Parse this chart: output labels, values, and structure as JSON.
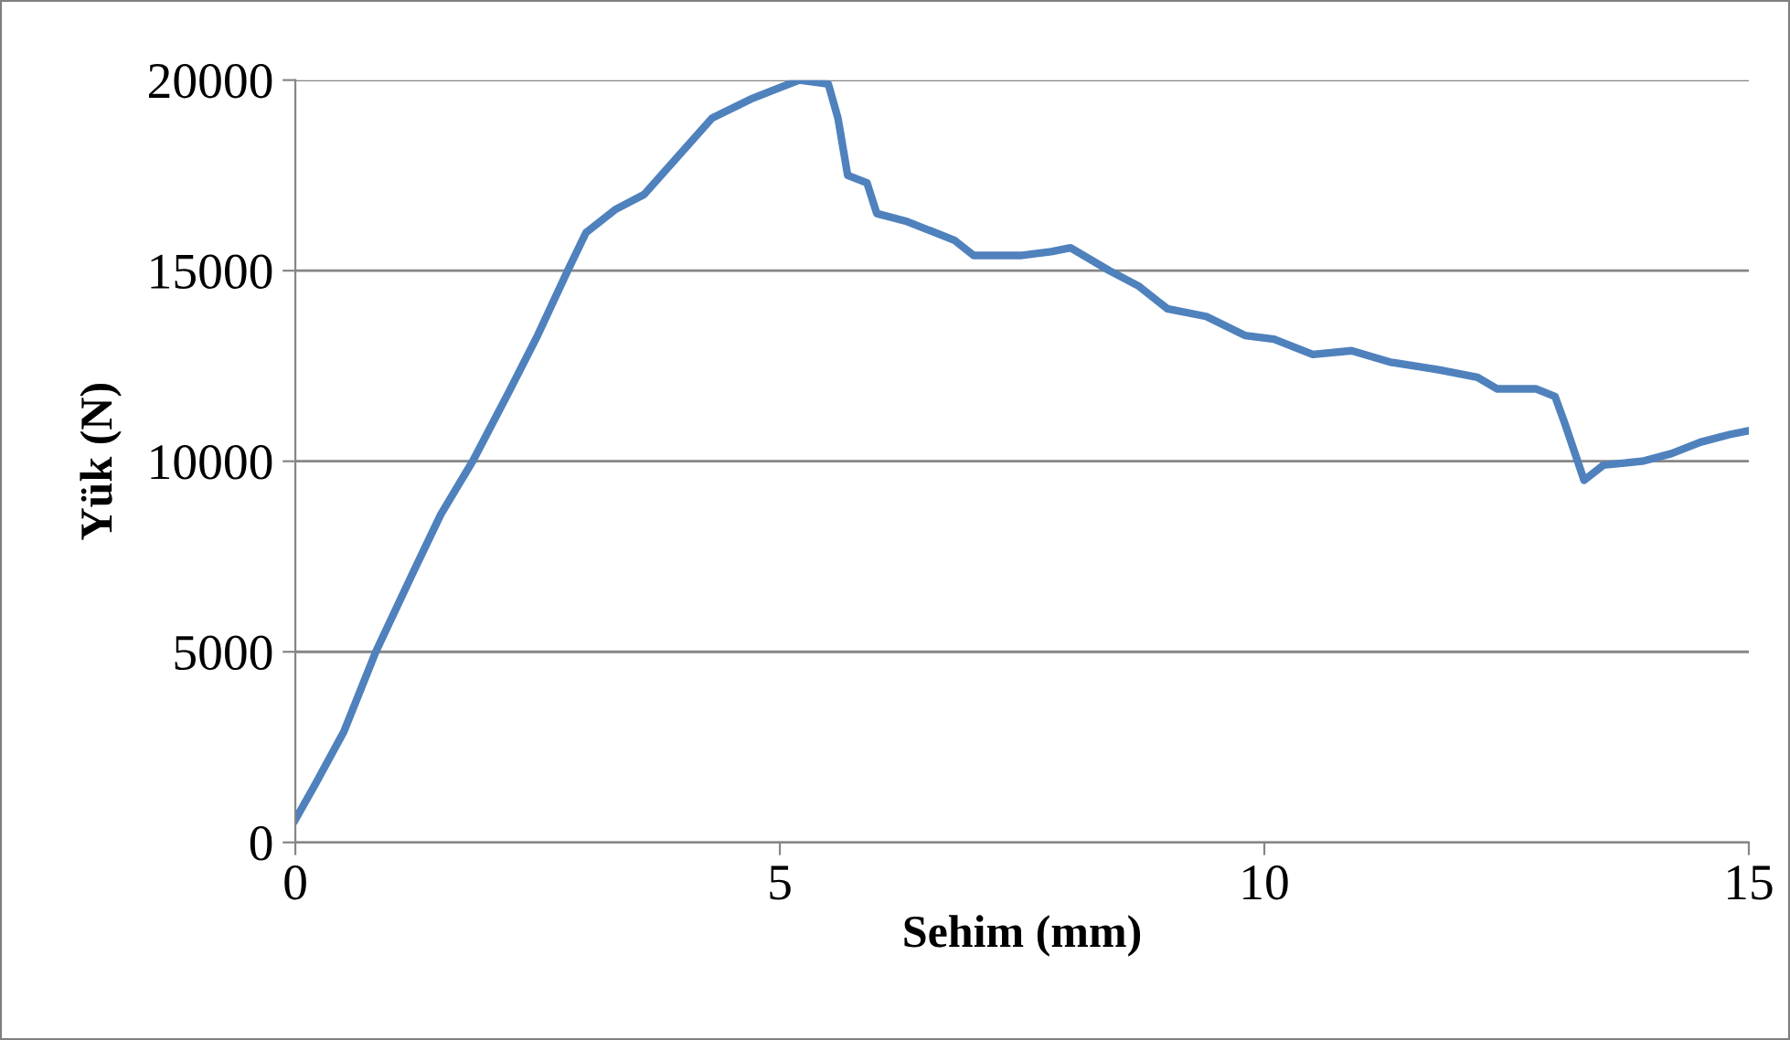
{
  "chart_data": {
    "type": "line",
    "xlabel": "Sehim (mm)",
    "ylabel": "Yük (N)",
    "xlim": [
      0,
      15
    ],
    "xticks": [
      0,
      5,
      10,
      15
    ],
    "ylim": [
      0,
      20000
    ],
    "yticks": [
      0,
      5000,
      10000,
      15000,
      20000
    ],
    "grid": "y",
    "marker": "none",
    "line_style": "solid",
    "series": [
      {
        "color": "#4f81bd",
        "x": [
          0,
          0.2,
          0.5,
          0.83,
          1.2,
          1.5,
          1.83,
          2.2,
          2.5,
          2.81,
          3.0,
          3.3,
          3.6,
          3.95,
          4.3,
          4.7,
          5.0,
          5.2,
          5.5,
          5.6,
          5.7,
          5.9,
          6.0,
          6.3,
          6.6,
          6.8,
          7.0,
          7.5,
          7.8,
          8.0,
          8.4,
          8.7,
          9.0,
          9.4,
          9.8,
          10.1,
          10.5,
          10.9,
          11.3,
          11.8,
          12.2,
          12.4,
          12.8,
          13.0,
          13.1,
          13.3,
          13.5,
          13.9,
          14.2,
          14.5,
          14.8,
          15.0
        ],
        "values": [
          600,
          1500,
          2900,
          5000,
          7000,
          8600,
          10000,
          11800,
          13300,
          15000,
          16000,
          16600,
          17000,
          18000,
          19000,
          19500,
          19800,
          20000,
          19900,
          19000,
          17500,
          17300,
          16500,
          16300,
          16000,
          15800,
          15400,
          15400,
          15500,
          15600,
          15000,
          14600,
          14000,
          13800,
          13300,
          13200,
          12800,
          12900,
          12600,
          12400,
          12200,
          11900,
          11900,
          11700,
          11000,
          9500,
          9900,
          10000,
          10200,
          10500,
          10700,
          10800
        ]
      }
    ]
  }
}
